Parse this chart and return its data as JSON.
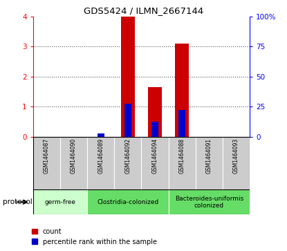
{
  "title": "GDS5424 / ILMN_2667144",
  "samples": [
    "GSM1464087",
    "GSM1464090",
    "GSM1464089",
    "GSM1464092",
    "GSM1464094",
    "GSM1464088",
    "GSM1464091",
    "GSM1464093"
  ],
  "count_values": [
    0,
    0,
    0,
    4.0,
    1.65,
    3.1,
    0,
    0
  ],
  "percentile_values": [
    0,
    0,
    2.5,
    27.5,
    12.5,
    22.5,
    0,
    0
  ],
  "ylim_left": [
    0,
    4
  ],
  "ylim_right": [
    0,
    100
  ],
  "yticks_left": [
    0,
    1,
    2,
    3,
    4
  ],
  "yticks_right": [
    0,
    25,
    50,
    75,
    100
  ],
  "yticklabels_right": [
    "0",
    "25",
    "50",
    "75",
    "100%"
  ],
  "count_color": "#cc0000",
  "percentile_color": "#0000cc",
  "bar_width": 0.5,
  "percentile_bar_width": 0.25,
  "sample_bg_color": "#cccccc",
  "protocol_label": "protocol",
  "legend_count_label": "count",
  "legend_percentile_label": "percentile rank within the sample",
  "grid_color": "#555555",
  "groups_info": [
    {
      "label": "germ-free",
      "start": 0,
      "end": 1,
      "color": "#ccffcc"
    },
    {
      "label": "Clostridia-colonized",
      "start": 2,
      "end": 4,
      "color": "#66dd66"
    },
    {
      "label": "Bacteroides-uniformis\ncolonized",
      "start": 5,
      "end": 7,
      "color": "#66dd66"
    }
  ]
}
